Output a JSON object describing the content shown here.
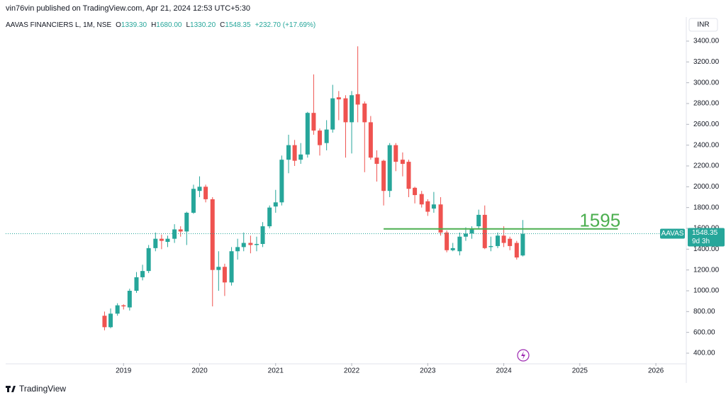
{
  "header": {
    "published": "vin76vin published on TradingView.com, Apr 21, 2024 12:53 UTC+5:30",
    "symbol": "AAVAS FINANCIERS L, 1M, NSE",
    "ohlc": [
      {
        "key": "O",
        "value": "1339.30"
      },
      {
        "key": "H",
        "value": "1680.00"
      },
      {
        "key": "L",
        "value": "1330.20"
      },
      {
        "key": "C",
        "value": "1548.35"
      }
    ],
    "change": "+232.70 (+17.69%)",
    "currency": "INR",
    "countdown": "9d 3h",
    "brand": "TradingView"
  },
  "chart_data": {
    "type": "candlestick",
    "x": [
      2018.75,
      2018.83,
      2018.92,
      2019.0,
      2019.08,
      2019.17,
      2019.25,
      2019.33,
      2019.42,
      2019.5,
      2019.58,
      2019.67,
      2019.75,
      2019.83,
      2019.92,
      2020.0,
      2020.08,
      2020.17,
      2020.25,
      2020.33,
      2020.42,
      2020.5,
      2020.58,
      2020.67,
      2020.75,
      2020.83,
      2020.92,
      2021.0,
      2021.08,
      2021.17,
      2021.25,
      2021.33,
      2021.42,
      2021.5,
      2021.58,
      2021.67,
      2021.75,
      2021.83,
      2021.92,
      2022.0,
      2022.08,
      2022.17,
      2022.25,
      2022.33,
      2022.42,
      2022.5,
      2022.58,
      2022.67,
      2022.75,
      2022.83,
      2022.92,
      2023.0,
      2023.08,
      2023.17,
      2023.25,
      2023.33,
      2023.42,
      2023.5,
      2023.58,
      2023.67,
      2023.75,
      2023.83,
      2023.92,
      2024.0,
      2024.08,
      2024.17,
      2024.25
    ],
    "series": [
      {
        "name": "AAVAS",
        "up_color": "#26a69a",
        "down_color": "#ef5350",
        "open": [
          760,
          650,
          780,
          860,
          840,
          1000,
          1130,
          1190,
          1410,
          1500,
          1470,
          1500,
          1590,
          1570,
          1750,
          1960,
          2000,
          1880,
          1200,
          1230,
          1080,
          1380,
          1420,
          1460,
          1440,
          1450,
          1620,
          1810,
          1850,
          2260,
          2400,
          2260,
          2310,
          2710,
          2540,
          2420,
          2550,
          2860,
          2850,
          2620,
          2890,
          2800,
          2620,
          2280,
          2250,
          1960,
          2400,
          2260,
          2240,
          1990,
          1930,
          1860,
          1790,
          1830,
          1560,
          1390,
          1380,
          1520,
          1550,
          1620,
          1730,
          1420,
          1430,
          1530,
          1500,
          1460,
          1339.3
        ],
        "high": [
          800,
          830,
          880,
          870,
          1020,
          1180,
          1250,
          1440,
          1560,
          1540,
          1530,
          1640,
          1620,
          1760,
          2020,
          2100,
          2020,
          1900,
          1380,
          1260,
          1420,
          1500,
          1560,
          1530,
          1520,
          1660,
          1820,
          1970,
          2300,
          2500,
          2450,
          2420,
          2720,
          3080,
          2560,
          2640,
          2980,
          2920,
          2880,
          2920,
          3350,
          2820,
          2680,
          2350,
          2260,
          2420,
          2420,
          2330,
          2260,
          2000,
          1960,
          1880,
          1950,
          1900,
          1580,
          1460,
          1560,
          1610,
          1620,
          1780,
          1820,
          1520,
          1560,
          1620,
          1520,
          1480,
          1680
        ],
        "low": [
          620,
          640,
          760,
          820,
          810,
          980,
          1100,
          1170,
          1380,
          1400,
          1420,
          1460,
          1520,
          1440,
          1740,
          1900,
          1850,
          850,
          1000,
          950,
          1050,
          1300,
          1380,
          1360,
          1380,
          1420,
          1600,
          1750,
          1820,
          2130,
          2200,
          2220,
          2280,
          2500,
          2300,
          2350,
          2520,
          2640,
          2280,
          2320,
          2620,
          2140,
          2260,
          2050,
          1820,
          1900,
          2150,
          2100,
          1900,
          1840,
          1800,
          1720,
          1750,
          1530,
          1370,
          1380,
          1340,
          1480,
          1500,
          1600,
          1400,
          1380,
          1410,
          1420,
          1390,
          1300,
          1330.2
        ],
        "close": [
          650,
          780,
          860,
          850,
          1000,
          1130,
          1190,
          1410,
          1500,
          1480,
          1500,
          1590,
          1570,
          1750,
          1980,
          2000,
          1880,
          1200,
          1230,
          1080,
          1380,
          1420,
          1460,
          1440,
          1450,
          1620,
          1800,
          1850,
          2260,
          2400,
          2250,
          2310,
          2710,
          2540,
          2400,
          2550,
          2850,
          2840,
          2620,
          2880,
          2790,
          2620,
          2280,
          2220,
          1960,
          2400,
          2240,
          2220,
          1980,
          1920,
          1830,
          1760,
          1830,
          1560,
          1390,
          1410,
          1520,
          1550,
          1600,
          1730,
          1410,
          1430,
          1530,
          1460,
          1430,
          1320,
          1548.35
        ]
      }
    ],
    "xlim": [
      2017.45,
      2026.4
    ],
    "xticks": [
      2019,
      2020,
      2021,
      2022,
      2023,
      2024,
      2025,
      2026
    ],
    "ylim": [
      304.5,
      3468
    ],
    "yticks": [
      {
        "value": 400,
        "label": "400.00"
      },
      {
        "value": 600,
        "label": "600.00"
      },
      {
        "value": 800,
        "label": "800.00"
      },
      {
        "value": 1000,
        "label": "1000.00"
      },
      {
        "value": 1200,
        "label": "1200.00"
      },
      {
        "value": 1400,
        "label": "1400.00"
      },
      {
        "value": 1600,
        "label": "1600.00"
      },
      {
        "value": 1800,
        "label": "1800.00"
      },
      {
        "value": 2000,
        "label": "2000.00"
      },
      {
        "value": 2200,
        "label": "2200.00"
      },
      {
        "value": 2400,
        "label": "2400.00"
      },
      {
        "value": 2600,
        "label": "2600.00"
      },
      {
        "value": 2800,
        "label": "2800.00"
      },
      {
        "value": 3000,
        "label": "3000.00"
      },
      {
        "value": 3200,
        "label": "3200.00"
      },
      {
        "value": 3400,
        "label": "3400.00"
      }
    ],
    "level": {
      "value": 1595,
      "x": [
        2022.42,
        2025.5
      ],
      "color": "#4caf50"
    }
  }
}
